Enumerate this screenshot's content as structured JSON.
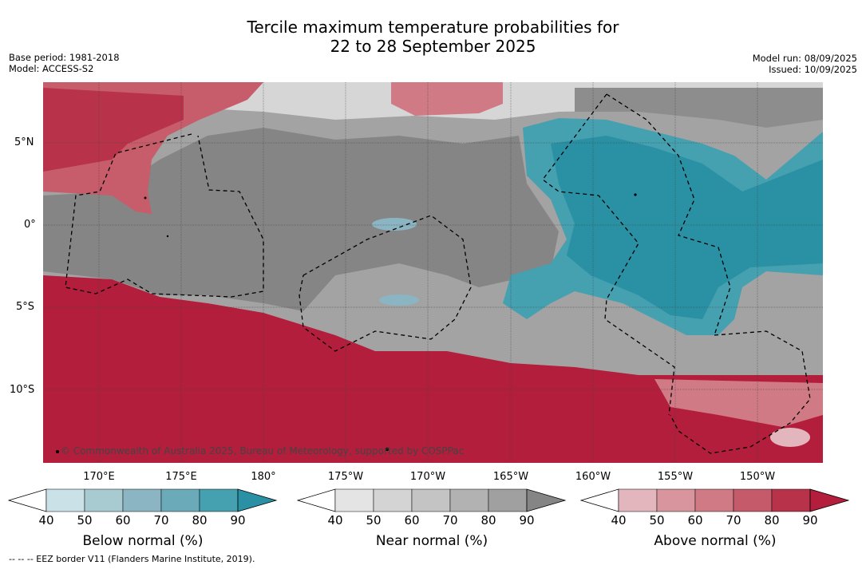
{
  "title": {
    "line1": "Tercile maximum temperature probabilities for",
    "line2": "22 to 28 September 2025"
  },
  "info_left": {
    "base_period": "Base period: 1981-2018",
    "model": "Model: ACCESS-S2"
  },
  "info_right": {
    "model_run": "Model run: 08/09/2025",
    "issued": "Issued: 10/09/2025"
  },
  "axes": {
    "lat_labels": [
      "5°N",
      "0°",
      "5°S",
      "10°S"
    ],
    "lon_labels": [
      "170°E",
      "175°E",
      "180°",
      "175°W",
      "170°W",
      "165°W",
      "160°W",
      "155°W",
      "150°W"
    ]
  },
  "copyright": "© Commonwealth of Australia 2025, Bureau of Meteorology, supported by COSPPac",
  "colorbars": [
    {
      "label": "Below normal (%)",
      "ticks": [
        "40",
        "50",
        "60",
        "70",
        "80",
        "90"
      ],
      "colors": [
        "#ffffff",
        "#c9e1e7",
        "#a8cbd2",
        "#8bb5c2",
        "#6aaab9",
        "#45a0b0",
        "#2a90a4"
      ]
    },
    {
      "label": "Near normal (%)",
      "ticks": [
        "40",
        "50",
        "60",
        "70",
        "80",
        "90"
      ],
      "colors": [
        "#ffffff",
        "#e4e4e4",
        "#d4d4d4",
        "#c4c4c4",
        "#b2b2b2",
        "#a0a0a0",
        "#858585"
      ]
    },
    {
      "label": "Above normal (%)",
      "ticks": [
        "40",
        "50",
        "60",
        "70",
        "80",
        "90"
      ],
      "colors": [
        "#ffffff",
        "#e2b6bc",
        "#d9959e",
        "#cf7a84",
        "#c45a6a",
        "#b83349",
        "#b21e3c"
      ]
    }
  ],
  "footnote": "--  --  -- EEZ border V11 (Flanders Marine Institute, 2019)."
}
